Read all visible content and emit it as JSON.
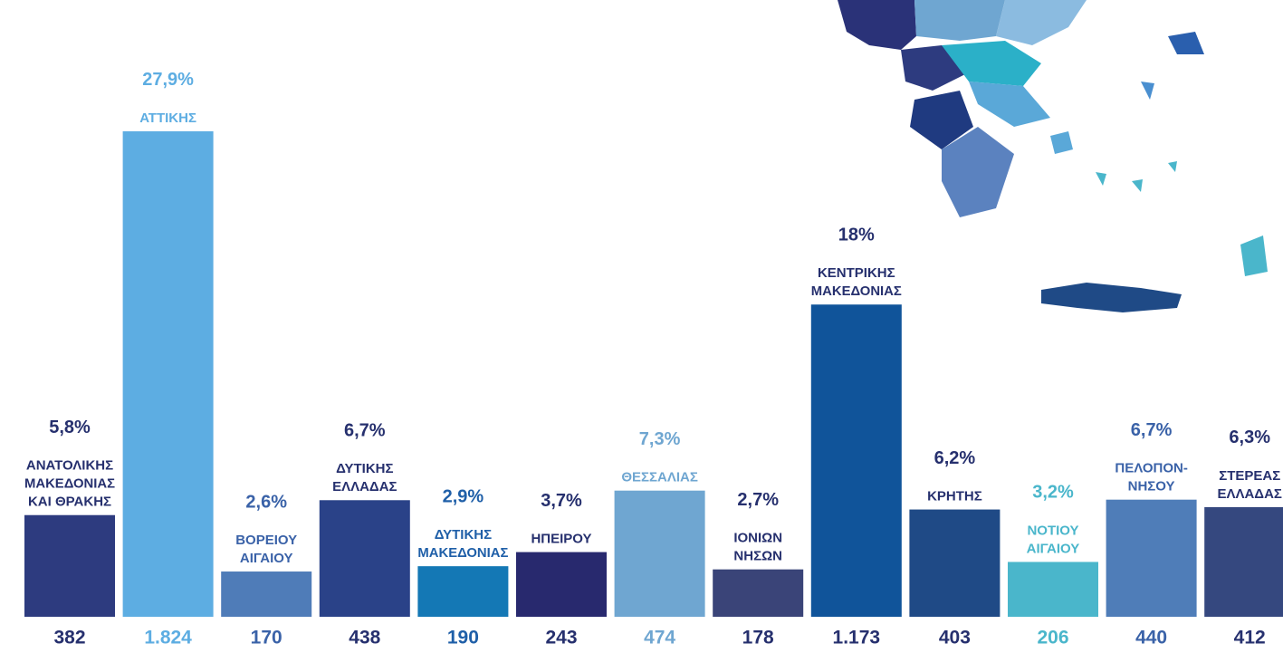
{
  "chart_data": {
    "type": "bar",
    "categories": [
      [
        "ΑΝΑΤΟΛΙΚΗΣ",
        "ΜΑΚΕΔΟΝΙΑΣ",
        "ΚΑΙ ΘΡΑΚΗΣ"
      ],
      [
        "ΑΤΤΙΚΗΣ"
      ],
      [
        "ΒΟΡΕΙΟΥ",
        "ΑΙΓΑΙΟΥ"
      ],
      [
        "ΔΥΤΙΚΗΣ",
        "ΕΛΛΑΔΑΣ"
      ],
      [
        "ΔΥΤΙΚΗΣ",
        "ΜΑΚΕΔΟΝΙΑΣ"
      ],
      [
        "ΗΠΕΙΡΟΥ"
      ],
      [
        "ΘΕΣΣΑΛΙΑΣ"
      ],
      [
        "ΙΟΝΙΩΝ",
        "ΝΗΣΩΝ"
      ],
      [
        "ΚΕΝΤΡΙΚΗΣ",
        "ΜΑΚΕΔΟΝΙΑΣ"
      ],
      [
        "ΚΡΗΤΗΣ"
      ],
      [
        "ΝΟΤΙΟΥ",
        "ΑΙΓΑΙΟΥ"
      ],
      [
        "ΠΕΛΟΠΟΝ-",
        "ΝΗΣΟΥ"
      ],
      [
        "ΣΤΕΡΕΑΣ",
        "ΕΛΛΑΔΑΣ"
      ]
    ],
    "values": [
      382,
      1824,
      170,
      438,
      190,
      243,
      474,
      178,
      1173,
      403,
      206,
      440,
      412
    ],
    "value_labels": [
      "382",
      "1.824",
      "170",
      "438",
      "190",
      "243",
      "474",
      "178",
      "1.173",
      "403",
      "206",
      "440",
      "412"
    ],
    "shares": [
      {
        "value": 5.8,
        "label": "5,8%"
      },
      {
        "value": 27.9,
        "label": "27,9%"
      },
      {
        "value": 2.6,
        "label": "2,6%"
      },
      {
        "value": 6.7,
        "label": "6,7%"
      },
      {
        "value": 2.9,
        "label": "2,9%"
      },
      {
        "value": 3.7,
        "label": "3,7%"
      },
      {
        "value": 7.3,
        "label": "7,3%"
      },
      {
        "value": 2.7,
        "label": "2,7%"
      },
      {
        "value": 18,
        "label": "18%"
      },
      {
        "value": 6.2,
        "label": "6,2%"
      },
      {
        "value": 3.2,
        "label": "3,2%"
      },
      {
        "value": 6.7,
        "label": "6,7%"
      },
      {
        "value": 6.3,
        "label": "6,3%"
      }
    ],
    "colors": [
      "#2d3b7f",
      "#5dade2",
      "#4f7cb8",
      "#2a4288",
      "#1478b5",
      "#28296e",
      "#6fa6d1",
      "#3a4478",
      "#10549a",
      "#1f4a86",
      "#4ab6cb",
      "#4f7db8",
      "#35487f"
    ],
    "label_colors": [
      "#26306e",
      "#5dade2",
      "#3a62a8",
      "#26306e",
      "#1f5fa8",
      "#26306e",
      "#6fa6d1",
      "#26306e",
      "#26306e",
      "#26306e",
      "#4ab6cb",
      "#3a62a8",
      "#26306e"
    ]
  }
}
